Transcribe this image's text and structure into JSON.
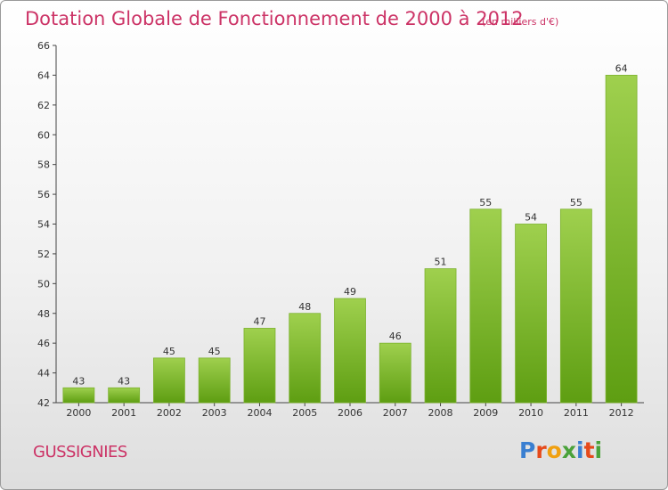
{
  "header": {
    "title": "Dotation Globale de Fonctionnement de 2000 à 2012",
    "subtitle": "(en milliers d'€)"
  },
  "footer": {
    "commune": "GUSSIGNIES",
    "logo": "Proxiti"
  },
  "colors": {
    "title": "#cc3366",
    "bar_top": "#9fd04e",
    "bar_bottom": "#5e9e12",
    "logo_letters": [
      "#3a7fd1",
      "#e64a1b",
      "#f0a010",
      "#4aa23a",
      "#3a7fd1",
      "#e64a1b",
      "#4aa23a"
    ]
  },
  "chart_data": {
    "type": "bar",
    "categories": [
      "2000",
      "2001",
      "2002",
      "2003",
      "2004",
      "2005",
      "2006",
      "2007",
      "2008",
      "2009",
      "2010",
      "2011",
      "2012"
    ],
    "values": [
      43,
      43,
      45,
      45,
      47,
      48,
      49,
      46,
      51,
      55,
      54,
      55,
      64
    ],
    "title": "Dotation Globale de Fonctionnement de 2000 à 2012",
    "subtitle": "(en milliers d'€)",
    "xlabel": "",
    "ylabel": "",
    "ylim": [
      42,
      66
    ],
    "yticks": [
      42,
      44,
      46,
      48,
      50,
      52,
      54,
      56,
      58,
      60,
      62,
      64,
      66
    ],
    "grid": false,
    "data_labels": true
  }
}
